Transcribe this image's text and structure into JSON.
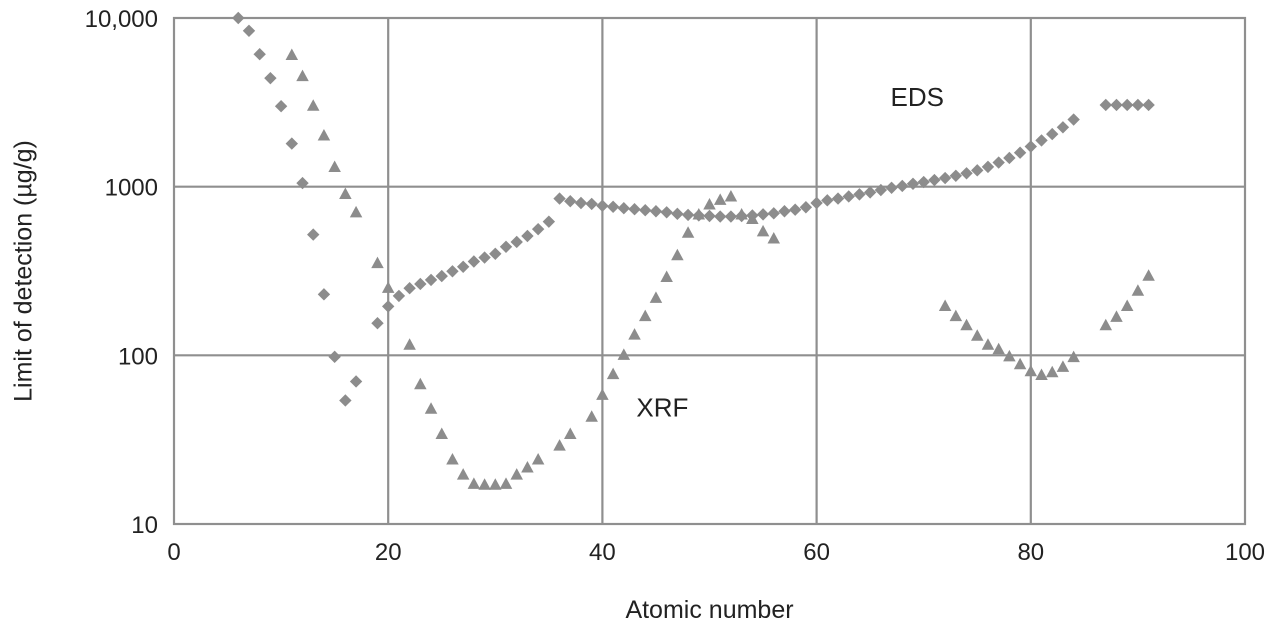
{
  "chart_data": {
    "type": "scatter",
    "xlabel": "Atomic number",
    "ylabel": "Limit of detection (µg/g)",
    "xlim": [
      0,
      100
    ],
    "ylim": [
      10,
      10000
    ],
    "yscale": "log",
    "grid": true,
    "x_ticks": [
      {
        "value": 0,
        "label": "0"
      },
      {
        "value": 20,
        "label": "20"
      },
      {
        "value": 40,
        "label": "40"
      },
      {
        "value": 60,
        "label": "60"
      },
      {
        "value": 80,
        "label": "80"
      },
      {
        "value": 100,
        "label": "100"
      }
    ],
    "y_ticks": [
      {
        "value": 10,
        "label": "10"
      },
      {
        "value": 100,
        "label": "100"
      },
      {
        "value": 1000,
        "label": "1000"
      },
      {
        "value": 10000,
        "label": "10,000"
      }
    ],
    "colors": {
      "markers": "#8c8c8c",
      "grid": "#8f8f8f",
      "axis": "#8f8f8f"
    },
    "annotations": [
      {
        "text": "EDS",
        "x": 69.4,
        "y": 3400
      },
      {
        "text": "XRF",
        "x": 45.6,
        "y": 49
      }
    ],
    "series": [
      {
        "marker": "diamond",
        "points": [
          [
            6,
            10000
          ],
          [
            7,
            8400
          ],
          [
            8,
            6100
          ],
          [
            9,
            4400
          ],
          [
            10,
            3000
          ],
          [
            11,
            1800
          ],
          [
            12,
            1050
          ],
          [
            13,
            520
          ],
          [
            14,
            230
          ],
          [
            15,
            98
          ],
          [
            16,
            54
          ],
          [
            17,
            70
          ],
          [
            19,
            155
          ],
          [
            20,
            195
          ],
          [
            21,
            225
          ],
          [
            22,
            250
          ],
          [
            23,
            265
          ],
          [
            24,
            280
          ],
          [
            25,
            295
          ],
          [
            26,
            315
          ],
          [
            27,
            335
          ],
          [
            28,
            360
          ],
          [
            29,
            380
          ],
          [
            30,
            400
          ],
          [
            31,
            440
          ],
          [
            32,
            470
          ],
          [
            33,
            510
          ],
          [
            34,
            560
          ],
          [
            35,
            620
          ],
          [
            36,
            850
          ],
          [
            37,
            820
          ],
          [
            38,
            800
          ],
          [
            39,
            790
          ],
          [
            40,
            770
          ],
          [
            41,
            760
          ],
          [
            42,
            745
          ],
          [
            43,
            735
          ],
          [
            44,
            725
          ],
          [
            45,
            715
          ],
          [
            46,
            705
          ],
          [
            47,
            690
          ],
          [
            48,
            680
          ],
          [
            49,
            675
          ],
          [
            50,
            670
          ],
          [
            51,
            665
          ],
          [
            52,
            665
          ],
          [
            53,
            670
          ],
          [
            54,
            675
          ],
          [
            55,
            685
          ],
          [
            56,
            695
          ],
          [
            57,
            715
          ],
          [
            58,
            730
          ],
          [
            59,
            755
          ],
          [
            60,
            800
          ],
          [
            61,
            830
          ],
          [
            62,
            850
          ],
          [
            63,
            875
          ],
          [
            64,
            900
          ],
          [
            65,
            925
          ],
          [
            66,
            955
          ],
          [
            67,
            985
          ],
          [
            68,
            1010
          ],
          [
            69,
            1040
          ],
          [
            70,
            1065
          ],
          [
            71,
            1095
          ],
          [
            72,
            1125
          ],
          [
            73,
            1160
          ],
          [
            74,
            1200
          ],
          [
            75,
            1250
          ],
          [
            76,
            1310
          ],
          [
            77,
            1390
          ],
          [
            78,
            1480
          ],
          [
            79,
            1590
          ],
          [
            80,
            1730
          ],
          [
            81,
            1880
          ],
          [
            82,
            2050
          ],
          [
            83,
            2250
          ],
          [
            84,
            2500
          ],
          [
            87,
            3050
          ],
          [
            88,
            3050
          ],
          [
            89,
            3050
          ],
          [
            90,
            3050
          ],
          [
            91,
            3050
          ]
        ]
      },
      {
        "marker": "triangle",
        "points": [
          [
            11,
            6000
          ],
          [
            12,
            4500
          ],
          [
            13,
            3000
          ],
          [
            14,
            2000
          ],
          [
            15,
            1300
          ],
          [
            16,
            900
          ],
          [
            17,
            700
          ],
          [
            19,
            350
          ],
          [
            20,
            250
          ],
          [
            22,
            115
          ],
          [
            23,
            67
          ],
          [
            24,
            48
          ],
          [
            25,
            34
          ],
          [
            26,
            24
          ],
          [
            27,
            19.5
          ],
          [
            28,
            17.2
          ],
          [
            29,
            17
          ],
          [
            30,
            17
          ],
          [
            31,
            17.2
          ],
          [
            32,
            19.5
          ],
          [
            33,
            21.5
          ],
          [
            34,
            24
          ],
          [
            36,
            29
          ],
          [
            37,
            34
          ],
          [
            39,
            43
          ],
          [
            40,
            58
          ],
          [
            41,
            77
          ],
          [
            42,
            100
          ],
          [
            43,
            132
          ],
          [
            44,
            170
          ],
          [
            45,
            218
          ],
          [
            46,
            290
          ],
          [
            47,
            390
          ],
          [
            48,
            530
          ],
          [
            49,
            680
          ],
          [
            50,
            780
          ],
          [
            51,
            830
          ],
          [
            52,
            870
          ],
          [
            53,
            680
          ],
          [
            54,
            640
          ],
          [
            55,
            540
          ],
          [
            56,
            490
          ],
          [
            72,
            195
          ],
          [
            73,
            170
          ],
          [
            74,
            150
          ],
          [
            75,
            130
          ],
          [
            76,
            115
          ],
          [
            77,
            108
          ],
          [
            78,
            98
          ],
          [
            79,
            88
          ],
          [
            80,
            80
          ],
          [
            81,
            76
          ],
          [
            82,
            79
          ],
          [
            83,
            85
          ],
          [
            84,
            97
          ],
          [
            87,
            150
          ],
          [
            88,
            168
          ],
          [
            89,
            195
          ],
          [
            90,
            240
          ],
          [
            91,
            295
          ]
        ]
      }
    ]
  }
}
